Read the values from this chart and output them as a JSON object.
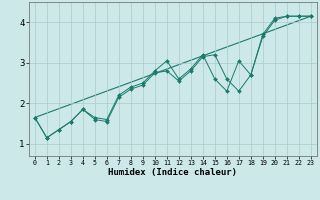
{
  "xlabel": "Humidex (Indice chaleur)",
  "background_color": "#cce8e8",
  "grid_color": "#aacccc",
  "line_color": "#1a7a6e",
  "xlim": [
    -0.5,
    23.5
  ],
  "ylim": [
    0.7,
    4.5
  ],
  "x_ticks": [
    0,
    1,
    2,
    3,
    4,
    5,
    6,
    7,
    8,
    9,
    10,
    11,
    12,
    13,
    14,
    15,
    16,
    17,
    18,
    19,
    20,
    21,
    22,
    23
  ],
  "y_ticks": [
    1,
    2,
    3,
    4
  ],
  "line1_x": [
    0,
    1,
    2,
    3,
    4,
    5,
    6,
    7,
    8,
    9,
    10,
    11,
    12,
    13,
    14,
    15,
    16,
    17,
    18,
    19,
    20,
    21,
    22,
    23
  ],
  "line1_y": [
    1.65,
    1.15,
    1.35,
    1.55,
    1.85,
    1.65,
    1.6,
    2.2,
    2.4,
    2.5,
    2.8,
    3.05,
    2.6,
    2.85,
    3.2,
    2.6,
    2.3,
    3.05,
    2.7,
    3.7,
    4.1,
    4.15,
    4.15,
    4.15
  ],
  "line2_x": [
    0,
    1,
    2,
    3,
    4,
    5,
    6,
    7,
    8,
    9,
    10,
    11,
    12,
    13,
    14,
    15,
    16,
    17,
    18,
    19,
    20,
    21,
    22,
    23
  ],
  "line2_y": [
    1.65,
    1.15,
    1.35,
    1.55,
    1.85,
    1.6,
    1.55,
    2.15,
    2.35,
    2.45,
    2.75,
    2.8,
    2.55,
    2.8,
    3.15,
    3.2,
    2.6,
    2.3,
    2.7,
    3.65,
    4.05,
    4.15,
    4.15,
    4.15
  ],
  "line3_x": [
    0,
    23
  ],
  "line3_y": [
    1.65,
    4.15
  ]
}
